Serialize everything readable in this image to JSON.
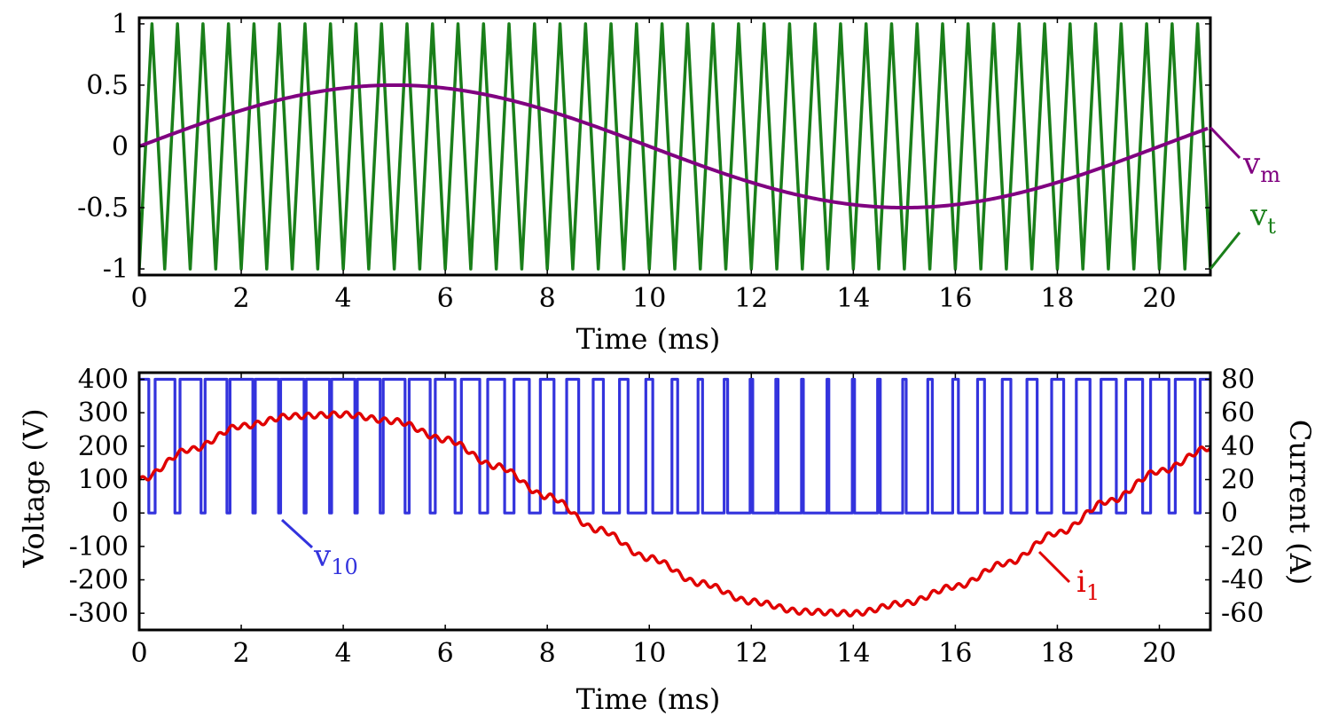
{
  "chart_data": [
    {
      "type": "line",
      "xlabel": "Time (ms)",
      "ylabel": "",
      "xlim": [
        0,
        21
      ],
      "ylim": [
        -1.05,
        1.05
      ],
      "xticks": [
        "0",
        "2",
        "4",
        "6",
        "8",
        "10",
        "12",
        "14",
        "16",
        "18",
        "20"
      ],
      "yticks": [
        "-1",
        "-0.5",
        "0",
        "0.5",
        "1"
      ],
      "grid": false,
      "series": [
        {
          "name": "v",
          "subscript": "t",
          "color": "#1a7f1a",
          "kind": "triangle-carrier",
          "frequency_khz": 2,
          "amplitude": 1
        },
        {
          "name": "v",
          "subscript": "m",
          "color": "#800080",
          "kind": "sine",
          "frequency_hz": 50,
          "amplitude": 0.5,
          "x": [
            0,
            1,
            2,
            3,
            4,
            5,
            6,
            7,
            8,
            9,
            10,
            11,
            12,
            13,
            14,
            15,
            16,
            17,
            18,
            19,
            20,
            21
          ],
          "y": [
            0,
            0.155,
            0.294,
            0.405,
            0.476,
            0.5,
            0.476,
            0.405,
            0.294,
            0.155,
            0,
            -0.155,
            -0.294,
            -0.405,
            -0.476,
            -0.5,
            -0.476,
            -0.405,
            -0.294,
            -0.155,
            0,
            0.155
          ]
        }
      ]
    },
    {
      "type": "line",
      "xlabel": "Time (ms)",
      "ylabel": "Voltage (V)",
      "y2label": "Current (A)",
      "xlim": [
        0,
        21
      ],
      "ylim": [
        -350,
        420
      ],
      "y2lim": [
        -70,
        84
      ],
      "xticks": [
        "0",
        "2",
        "4",
        "6",
        "8",
        "10",
        "12",
        "14",
        "16",
        "18",
        "20"
      ],
      "yticks": [
        "-300",
        "-200",
        "-100",
        "0",
        "100",
        "200",
        "300",
        "400"
      ],
      "y2ticks": [
        "-60",
        "-40",
        "-20",
        "0",
        "20",
        "40",
        "60",
        "80"
      ],
      "grid": false,
      "series": [
        {
          "name": "v",
          "subscript": "10",
          "color": "#3333dd",
          "axis": "left",
          "kind": "pwm",
          "levels": [
            0,
            400
          ],
          "switching_frequency_khz": 2
        },
        {
          "name": "i",
          "subscript": "1",
          "color": "#e00000",
          "axis": "right",
          "kind": "sine-with-ripple",
          "x": [
            0,
            1,
            2,
            3,
            4,
            5,
            6,
            7,
            8,
            9,
            10,
            11,
            12,
            13,
            14,
            15,
            16,
            17,
            18,
            19,
            20,
            21
          ],
          "y": [
            20,
            38,
            52,
            58,
            59,
            55,
            44,
            28,
            10,
            -10,
            -27,
            -42,
            -53,
            -59,
            -60,
            -54,
            -44,
            -30,
            -12,
            7,
            25,
            39
          ]
        }
      ]
    }
  ]
}
